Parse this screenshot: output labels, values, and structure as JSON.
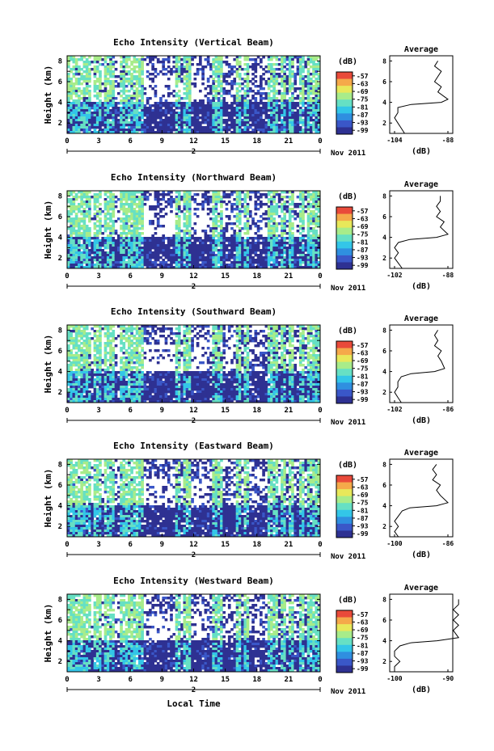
{
  "figure": {
    "bottom_xlabel": "Local Time",
    "colorbar_unit": "(dB)",
    "colorbar_ticks": [
      "-57",
      "-63",
      "-69",
      "-75",
      "-81",
      "-87",
      "-93",
      "-99"
    ],
    "date_label": "Nov 2011",
    "date_tick": "2",
    "avg_title": "Average",
    "avg_xlabel": "(dB)",
    "colors": {
      "no_data": "#ffffff",
      "scale": [
        "#2e3192",
        "#3a57c8",
        "#2f8fe0",
        "#33c6e8",
        "#66e0c4",
        "#a8ec8a",
        "#e8e85a",
        "#f5a94a",
        "#e94a3a"
      ]
    }
  },
  "chart_data": [
    {
      "type": "heatmap",
      "title": "Echo Intensity (Vertical Beam)",
      "ylabel": "Height (km)",
      "xlabel": "Local Time",
      "xticks": [
        "0",
        "3",
        "6",
        "9",
        "12",
        "15",
        "18",
        "21",
        "0"
      ],
      "yticks": [
        "8",
        "6",
        "4",
        "2"
      ],
      "avg_profile": {
        "title": "Average",
        "xlabel": "(dB)",
        "xticks": [
          "-104",
          "-88"
        ],
        "yticks": [
          "8",
          "6",
          "4",
          "2"
        ],
        "height_km": [
          1.0,
          1.5,
          2.0,
          2.5,
          3.0,
          3.5,
          3.8,
          4.0,
          4.3,
          5.0,
          5.5,
          6.0,
          6.5,
          7.0,
          7.5,
          8.0
        ],
        "value_db": [
          -101,
          -102,
          -103,
          -104,
          -103,
          -103,
          -99,
          -90,
          -88,
          -91,
          -90,
          -92,
          -91,
          -90,
          -92,
          -91
        ]
      }
    },
    {
      "type": "heatmap",
      "title": "Echo Intensity (Northward Beam)",
      "ylabel": "Height (km)",
      "xlabel": "Local Time",
      "xticks": [
        "0",
        "3",
        "6",
        "9",
        "12",
        "15",
        "18",
        "21",
        "0"
      ],
      "yticks": [
        "8",
        "6",
        "4",
        "2"
      ],
      "avg_profile": {
        "title": "Average",
        "xlabel": "(dB)",
        "xticks": [
          "-102",
          "-88"
        ],
        "yticks": [
          "8",
          "6",
          "4",
          "2"
        ],
        "height_km": [
          1.0,
          1.5,
          2.0,
          2.5,
          3.0,
          3.5,
          3.8,
          4.0,
          4.3,
          5.0,
          5.5,
          6.0,
          6.5,
          7.0,
          7.5,
          8.0
        ],
        "value_db": [
          -100,
          -101,
          -102,
          -101,
          -102,
          -101,
          -98,
          -91,
          -88,
          -90,
          -89,
          -91,
          -90,
          -91,
          -90,
          -90
        ]
      }
    },
    {
      "type": "heatmap",
      "title": "Echo Intensity (Southward Beam)",
      "ylabel": "Height (km)",
      "xlabel": "Local Time",
      "xticks": [
        "0",
        "3",
        "6",
        "9",
        "12",
        "15",
        "18",
        "21",
        "0"
      ],
      "yticks": [
        "8",
        "6",
        "4",
        "2"
      ],
      "avg_profile": {
        "title": "Average",
        "xlabel": "(dB)",
        "xticks": [
          "-102",
          "-86"
        ],
        "yticks": [
          "8",
          "6",
          "4",
          "2"
        ],
        "height_km": [
          1.0,
          1.5,
          2.0,
          2.5,
          3.0,
          3.5,
          3.8,
          4.0,
          4.3,
          5.0,
          5.5,
          6.0,
          6.5,
          7.0,
          7.5,
          8.0
        ],
        "value_db": [
          -100,
          -101,
          -102,
          -101,
          -101,
          -100,
          -97,
          -90,
          -87,
          -88,
          -89,
          -88,
          -90,
          -89,
          -90,
          -89
        ]
      }
    },
    {
      "type": "heatmap",
      "title": "Echo Intensity (Eastward Beam)",
      "ylabel": "Height (km)",
      "xlabel": "Local Time",
      "xticks": [
        "0",
        "3",
        "6",
        "9",
        "12",
        "15",
        "18",
        "21",
        "0"
      ],
      "yticks": [
        "8",
        "6",
        "4",
        "2"
      ],
      "avg_profile": {
        "title": "Average",
        "xlabel": "(dB)",
        "xticks": [
          "-100",
          "-86"
        ],
        "yticks": [
          "8",
          "6",
          "4",
          "2"
        ],
        "height_km": [
          1.0,
          1.5,
          2.0,
          2.5,
          3.0,
          3.5,
          3.8,
          4.0,
          4.3,
          5.0,
          5.5,
          6.0,
          6.5,
          7.0,
          7.5,
          8.0
        ],
        "value_db": [
          -99,
          -100,
          -99,
          -100,
          -99,
          -98,
          -96,
          -89,
          -86,
          -88,
          -89,
          -88,
          -90,
          -89,
          -90,
          -89
        ]
      }
    },
    {
      "type": "heatmap",
      "title": "Echo Intensity (Westward Beam)",
      "ylabel": "Height (km)",
      "xlabel": "Local Time",
      "xticks": [
        "0",
        "3",
        "6",
        "9",
        "12",
        "15",
        "18",
        "21",
        "0"
      ],
      "yticks": [
        "8",
        "6",
        "4",
        "2"
      ],
      "avg_profile": {
        "title": "Average",
        "xlabel": "(dB)",
        "xticks": [
          "-100",
          "-90"
        ],
        "yticks": [
          "8",
          "6",
          "4",
          "2"
        ],
        "height_km": [
          1.0,
          1.5,
          2.0,
          2.5,
          3.0,
          3.5,
          3.8,
          4.0,
          4.3,
          5.0,
          5.5,
          6.0,
          6.5,
          7.0,
          7.5,
          8.0
        ],
        "value_db": [
          -100,
          -100,
          -99,
          -100,
          -100,
          -99,
          -97,
          -92,
          -88,
          -89,
          -88,
          -89,
          -88,
          -89,
          -88,
          -88
        ]
      }
    }
  ]
}
